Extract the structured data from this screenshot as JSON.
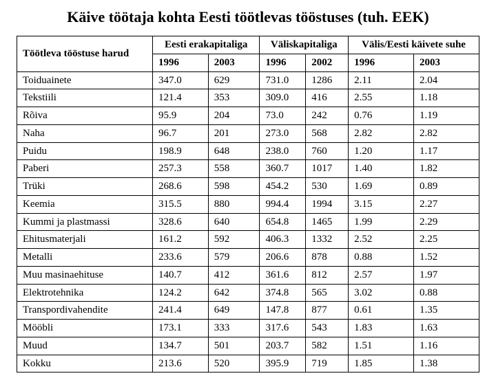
{
  "title": "Käive töötaja kohta Eesti töötlevas tööstuses (tuh. EEK)",
  "table": {
    "type": "table",
    "background_color": "#ffffff",
    "border_color": "#000000",
    "font_family": "Times New Roman",
    "cell_fontsize": 15,
    "row_header_col": "Töötleva tööstuse harud",
    "groups": [
      {
        "label": "Eesti erakapitaliga",
        "years": [
          "1996",
          "2003"
        ]
      },
      {
        "label": "Väliskapitaliga",
        "years": [
          "1996",
          "2002"
        ]
      },
      {
        "label": "Välis/Eesti käivete suhe",
        "years": [
          "1996",
          "2003"
        ]
      }
    ],
    "rows": [
      {
        "label": "Toiduainete",
        "values": [
          "347.0",
          "629",
          "731.0",
          "1286",
          "2.11",
          "2.04"
        ]
      },
      {
        "label": "Tekstiili",
        "values": [
          "121.4",
          "353",
          "309.0",
          "416",
          "2.55",
          "1.18"
        ]
      },
      {
        "label": "Rõiva",
        "values": [
          "95.9",
          "204",
          "73.0",
          "242",
          "0.76",
          "1.19"
        ]
      },
      {
        "label": "Naha",
        "values": [
          "96.7",
          "201",
          "273.0",
          "568",
          "2.82",
          "2.82"
        ]
      },
      {
        "label": "Puidu",
        "values": [
          "198.9",
          "648",
          "238.0",
          "760",
          "1.20",
          "1.17"
        ]
      },
      {
        "label": "Paberi",
        "values": [
          "257.3",
          "558",
          "360.7",
          "1017",
          "1.40",
          "1.82"
        ]
      },
      {
        "label": "Trüki",
        "values": [
          "268.6",
          "598",
          "454.2",
          "530",
          "1.69",
          "0.89"
        ]
      },
      {
        "label": "Keemia",
        "values": [
          "315.5",
          "880",
          "994.4",
          "1994",
          "3.15",
          "2.27"
        ]
      },
      {
        "label": "Kummi ja plastmassi",
        "values": [
          "328.6",
          "640",
          "654.8",
          "1465",
          "1.99",
          "2.29"
        ]
      },
      {
        "label": "Ehitusmaterjali",
        "values": [
          "161.2",
          "592",
          "406.3",
          "1332",
          "2.52",
          "2.25"
        ]
      },
      {
        "label": "Metalli",
        "values": [
          "233.6",
          "579",
          "206.6",
          "878",
          "0.88",
          "1.52"
        ]
      },
      {
        "label": "Muu masinaehituse",
        "values": [
          "140.7",
          "412",
          "361.6",
          "812",
          "2.57",
          "1.97"
        ]
      },
      {
        "label": "Elektrotehnika",
        "values": [
          "124.2",
          "642",
          "374.8",
          "565",
          "3.02",
          "0.88"
        ]
      },
      {
        "label": "Transpordivahendite",
        "values": [
          "241.4",
          "649",
          "147.8",
          "877",
          "0.61",
          "1.35"
        ]
      },
      {
        "label": "Mööbli",
        "values": [
          "173.1",
          "333",
          "317.6",
          "543",
          "1.83",
          "1.63"
        ]
      },
      {
        "label": "Muud",
        "values": [
          "134.7",
          "501",
          "203.7",
          "582",
          "1.51",
          "1.16"
        ]
      },
      {
        "label": "Kokku",
        "values": [
          "213.6",
          "520",
          "395.9",
          "719",
          "1.85",
          "1.38"
        ]
      }
    ]
  }
}
